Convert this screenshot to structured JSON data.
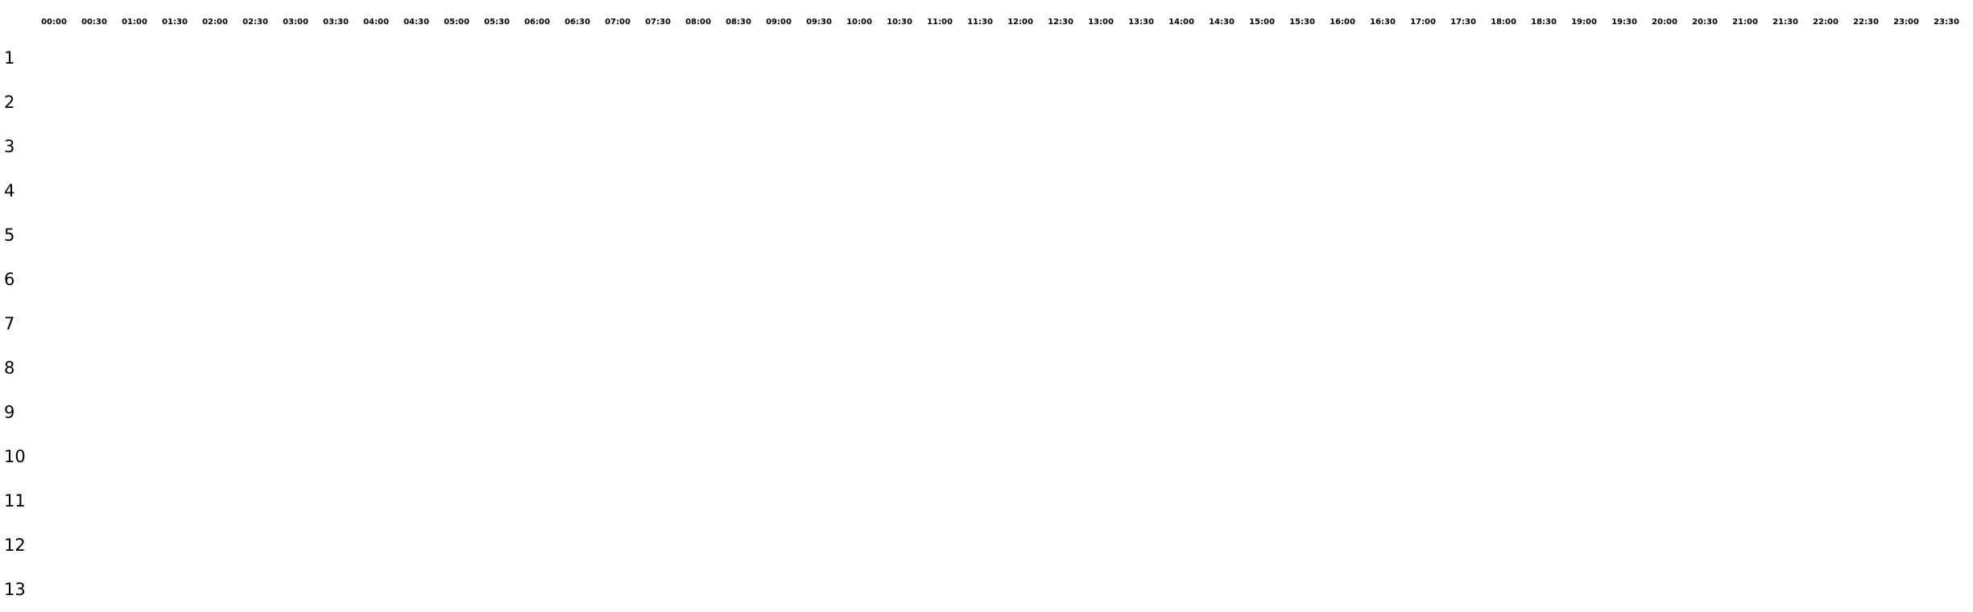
{
  "schedule": {
    "time_slots": [
      "00:00",
      "00:30",
      "01:00",
      "01:30",
      "02:00",
      "02:30",
      "03:00",
      "03:30",
      "04:00",
      "04:30",
      "05:00",
      "05:30",
      "06:00",
      "06:30",
      "07:00",
      "07:30",
      "08:00",
      "08:30",
      "09:00",
      "09:30",
      "10:00",
      "10:30",
      "11:00",
      "11:30",
      "12:00",
      "12:30",
      "13:00",
      "13:30",
      "14:00",
      "14:30",
      "15:00",
      "15:30",
      "16:00",
      "16:30",
      "17:00",
      "17:30",
      "18:00",
      "18:30",
      "19:00",
      "19:30",
      "20:00",
      "20:30",
      "21:00",
      "21:30",
      "22:00",
      "22:30",
      "23:00",
      "23:30"
    ],
    "rows": [
      "1",
      "2",
      "3",
      "4",
      "5",
      "6",
      "7",
      "8",
      "9",
      "10",
      "11",
      "12",
      "13"
    ]
  }
}
